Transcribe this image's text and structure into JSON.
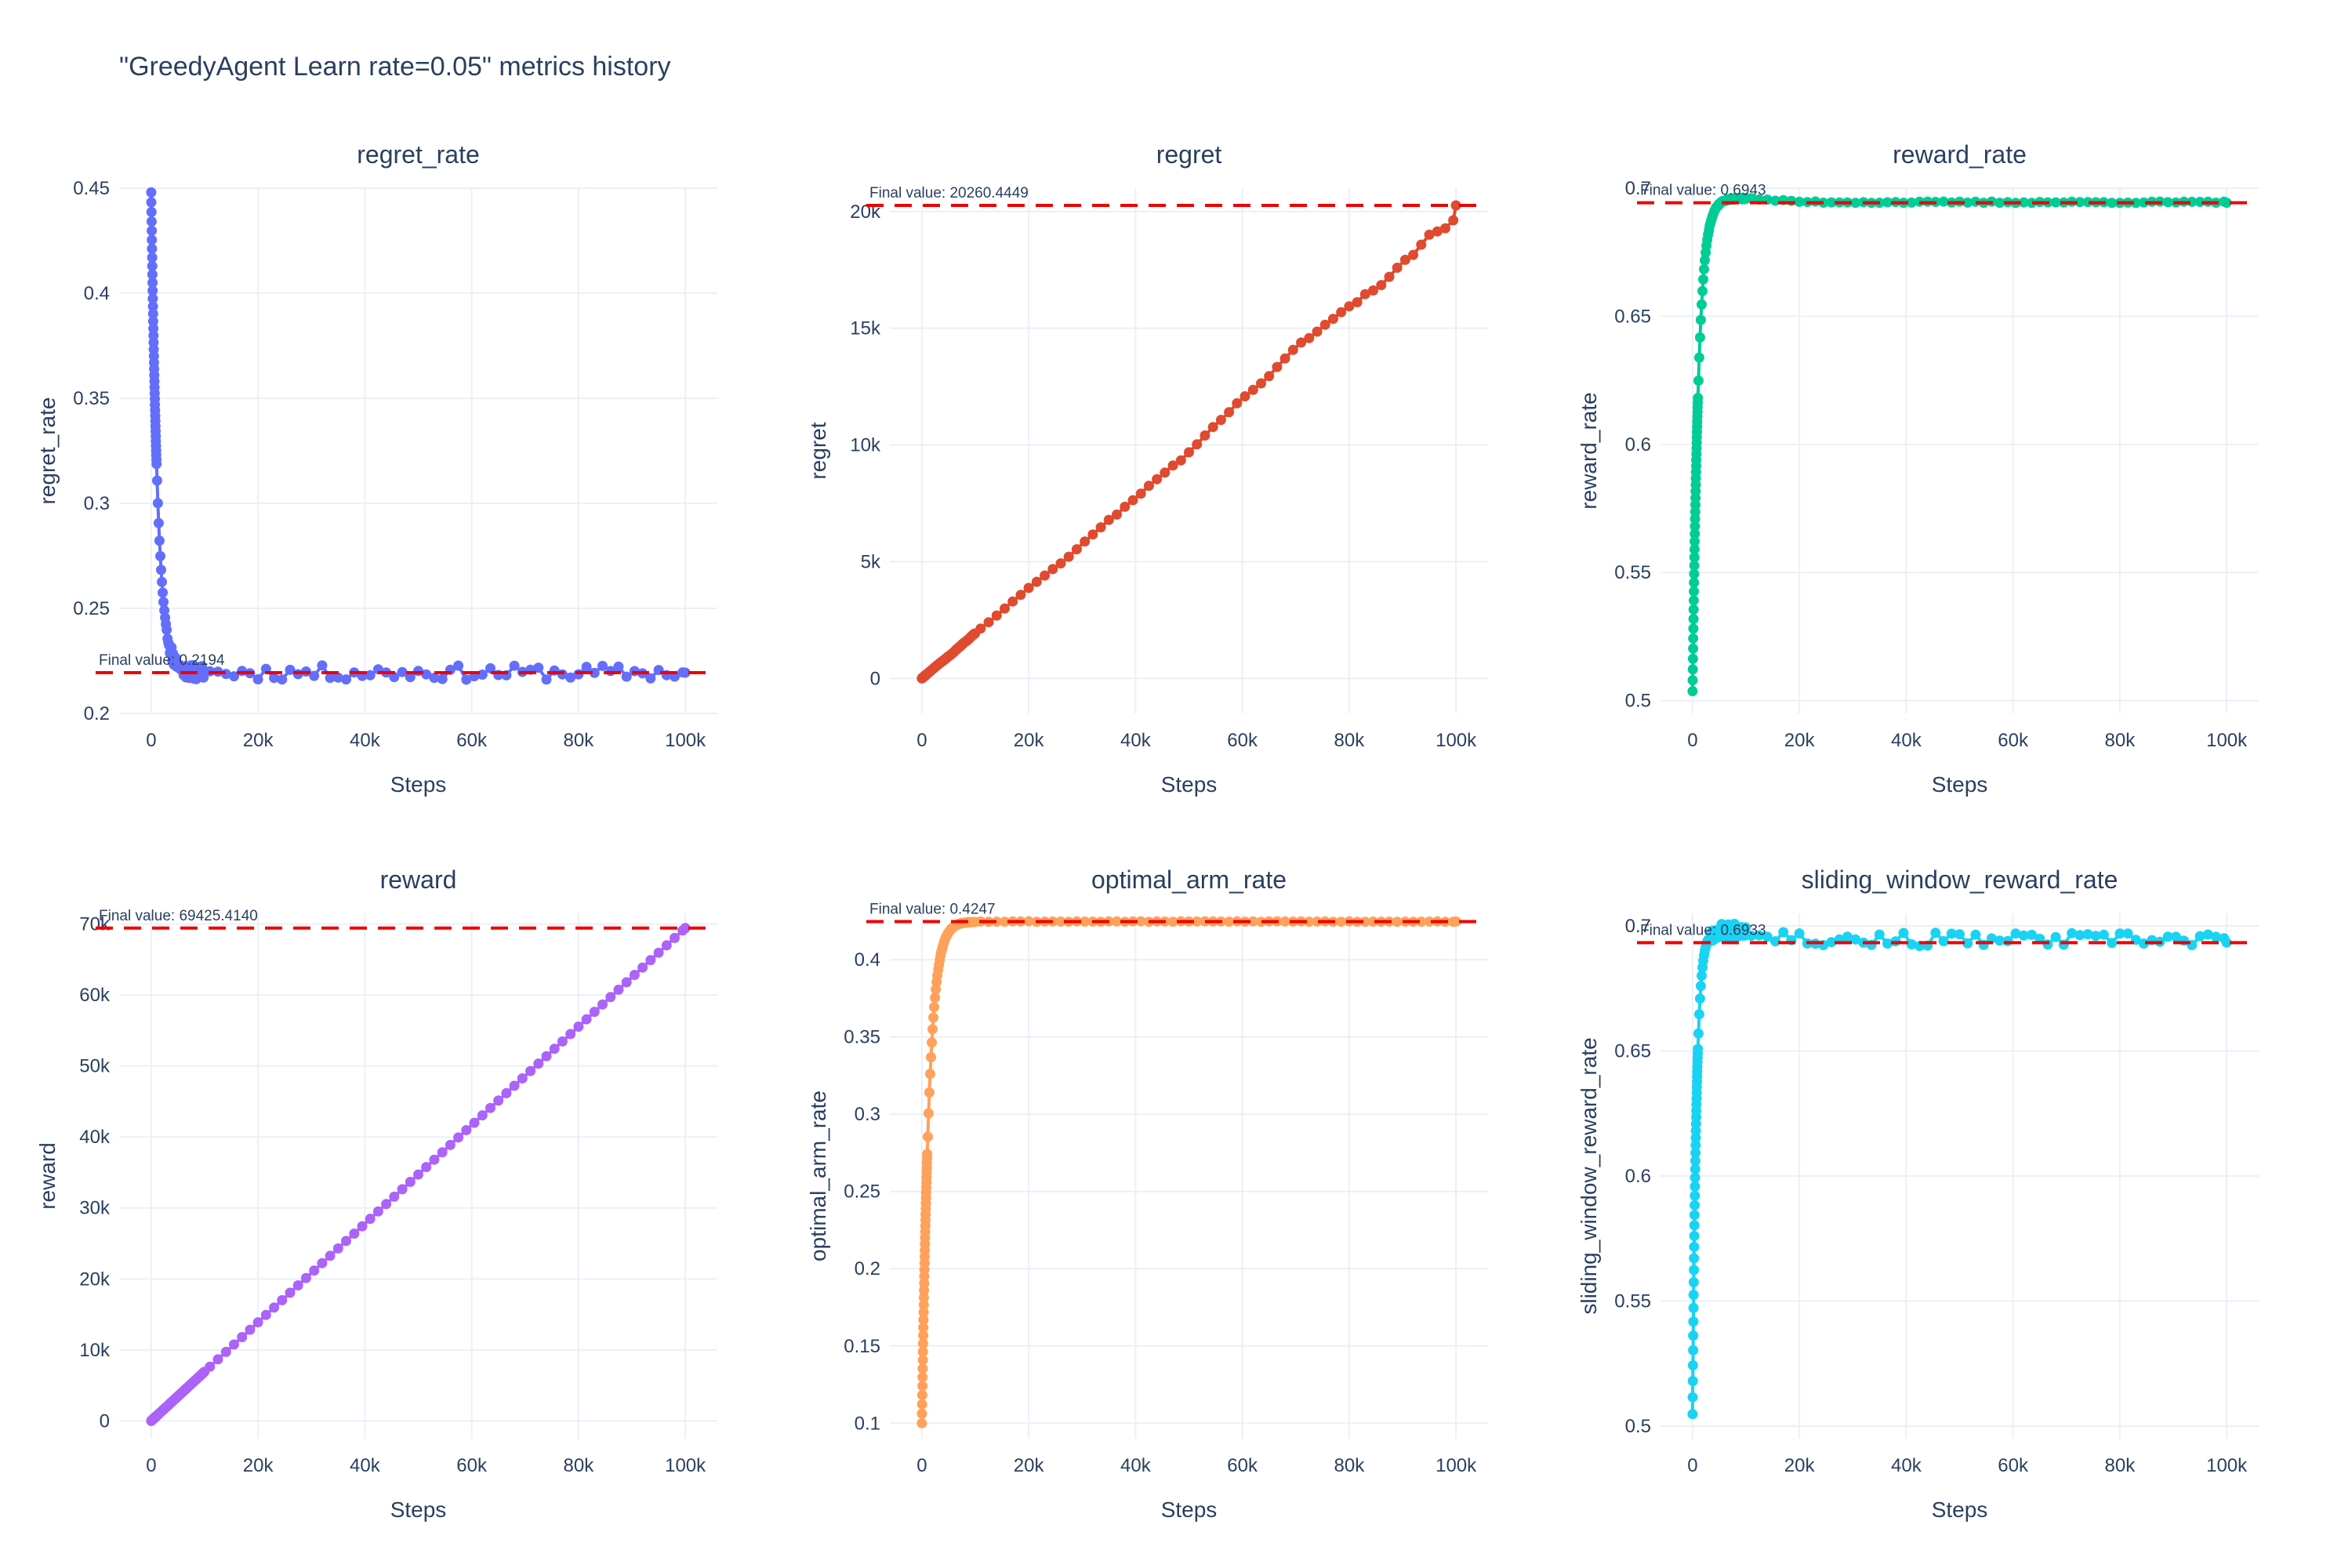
{
  "title": "\"GreedyAgent Learn rate=0.05\" metrics history",
  "colors": {
    "grid": "#ebf0f8",
    "zeroline": "#ebf0f8",
    "text": "#2a3f5f",
    "final_line": "#ee0000"
  },
  "chart_data": [
    {
      "type": "line",
      "title": "regret_rate",
      "xlabel": "Steps",
      "ylabel": "regret_rate",
      "color": "#636efa",
      "xlim": [
        -6000,
        106000
      ],
      "ylim": [
        0.2,
        0.45
      ],
      "xticks": [
        0,
        20000,
        40000,
        60000,
        80000,
        100000
      ],
      "xtick_labels": [
        "0",
        "20k",
        "40k",
        "60k",
        "80k",
        "100k"
      ],
      "yticks": [
        0.2,
        0.25,
        0.3,
        0.35,
        0.4,
        0.45
      ],
      "ytick_labels": [
        "0.2",
        "0.25",
        "0.3",
        "0.35",
        "0.4",
        "0.45"
      ],
      "final_value": 0.2194,
      "final_label": "Final value: 0.2194",
      "curve": "decay",
      "start": 0.448,
      "end": 0.2194,
      "tau": 1200,
      "noise": 0.0035,
      "seed": 11
    },
    {
      "type": "line",
      "title": "regret",
      "xlabel": "Steps",
      "ylabel": "regret",
      "color": "#e04a2f",
      "xlim": [
        -6000,
        106000
      ],
      "ylim": [
        -1500,
        21000
      ],
      "xticks": [
        0,
        20000,
        40000,
        60000,
        80000,
        100000
      ],
      "xtick_labels": [
        "0",
        "20k",
        "40k",
        "60k",
        "80k",
        "100k"
      ],
      "yticks": [
        0,
        5000,
        10000,
        15000,
        20000
      ],
      "ytick_labels": [
        "0",
        "5k",
        "10k",
        "15k",
        "20k"
      ],
      "final_value": 20260.4449,
      "final_label": "Final value: 20260.4449",
      "curve": "cumulative",
      "start": 0,
      "end": 20260.4449,
      "noise": 180,
      "seed": 23
    },
    {
      "type": "line",
      "title": "reward_rate",
      "xlabel": "Steps",
      "ylabel": "reward_rate",
      "color": "#00cc96",
      "xlim": [
        -6000,
        106000
      ],
      "ylim": [
        0.495,
        0.7
      ],
      "xticks": [
        0,
        20000,
        40000,
        60000,
        80000,
        100000
      ],
      "xtick_labels": [
        "0",
        "20k",
        "40k",
        "60k",
        "80k",
        "100k"
      ],
      "yticks": [
        0.5,
        0.55,
        0.6,
        0.65,
        0.7
      ],
      "ytick_labels": [
        "0.5",
        "0.55",
        "0.6",
        "0.65",
        "0.7"
      ],
      "final_value": 0.6943,
      "final_label": "Final value: 0.6943",
      "curve": "rise",
      "start": 0.503,
      "end": 0.6945,
      "overshoot": 0.0015,
      "tau": 1100,
      "noise": 0.0003,
      "seed": 37
    },
    {
      "type": "line",
      "title": "reward",
      "xlabel": "Steps",
      "ylabel": "reward",
      "color": "#ab63fa",
      "xlim": [
        -6000,
        106000
      ],
      "ylim": [
        -2500,
        71500
      ],
      "xticks": [
        0,
        20000,
        40000,
        60000,
        80000,
        100000
      ],
      "xtick_labels": [
        "0",
        "20k",
        "40k",
        "60k",
        "80k",
        "100k"
      ],
      "yticks": [
        0,
        10000,
        20000,
        30000,
        40000,
        50000,
        60000,
        70000
      ],
      "ytick_labels": [
        "0",
        "10k",
        "20k",
        "30k",
        "40k",
        "50k",
        "60k",
        "70k"
      ],
      "final_value": 69425.414,
      "final_label": "Final value: 69425.4140",
      "curve": "cumulative",
      "start": 0,
      "end": 69425.414,
      "noise": 0,
      "seed": 41
    },
    {
      "type": "line",
      "title": "optimal_arm_rate",
      "xlabel": "Steps",
      "ylabel": "optimal_arm_rate",
      "color": "#ffa15a",
      "xlim": [
        -6000,
        106000
      ],
      "ylim": [
        0.09,
        0.43
      ],
      "xticks": [
        0,
        20000,
        40000,
        60000,
        80000,
        100000
      ],
      "xtick_labels": [
        "0",
        "20k",
        "40k",
        "60k",
        "80k",
        "100k"
      ],
      "yticks": [
        0.1,
        0.15,
        0.2,
        0.25,
        0.3,
        0.35,
        0.4
      ],
      "ytick_labels": [
        "0.1",
        "0.15",
        "0.2",
        "0.25",
        "0.3",
        "0.35",
        "0.4"
      ],
      "final_value": 0.4247,
      "final_label": "Final value: 0.4247",
      "curve": "rise",
      "start": 0.1,
      "end": 0.4247,
      "overshoot": 0,
      "tau": 1300,
      "noise": 0.0002,
      "seed": 53
    },
    {
      "type": "line",
      "title": "sliding_window_reward_rate",
      "xlabel": "Steps",
      "ylabel": "sliding_window_reward_rate",
      "color": "#19d3f3",
      "xlim": [
        -6000,
        106000
      ],
      "ylim": [
        0.495,
        0.705
      ],
      "xticks": [
        0,
        20000,
        40000,
        60000,
        80000,
        100000
      ],
      "xtick_labels": [
        "0",
        "20k",
        "40k",
        "60k",
        "80k",
        "100k"
      ],
      "yticks": [
        0.5,
        0.55,
        0.6,
        0.65,
        0.7
      ],
      "ytick_labels": [
        "0.5",
        "0.55",
        "0.6",
        "0.65",
        "0.7"
      ],
      "final_value": 0.6933,
      "final_label": "Final value: 0.6933",
      "curve": "rise",
      "start": 0.503,
      "end": 0.6945,
      "overshoot": 0.004,
      "tau": 700,
      "noise": 0.0028,
      "seed": 67
    }
  ]
}
